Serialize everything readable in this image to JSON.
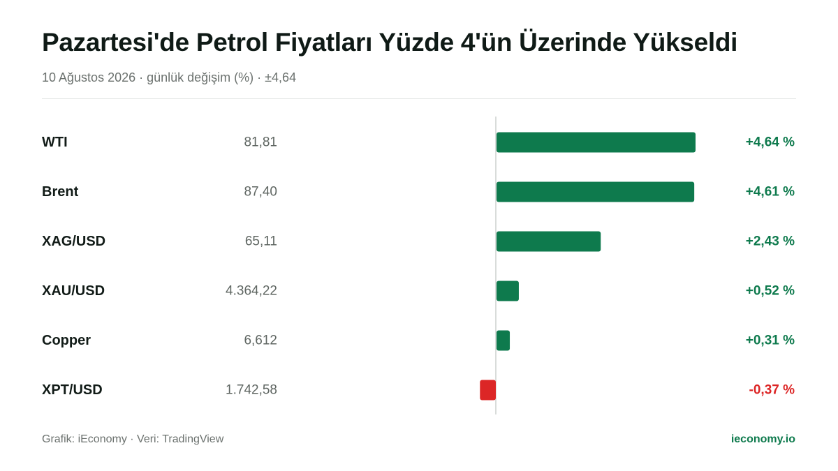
{
  "header": {
    "title": "Pazartesi'de Petrol Fiyatları Yüzde 4'ün Üzerinde Yükseldi",
    "subtitle": "10 Ağustos 2026 · günlük değişim (%) · ±4,64"
  },
  "colors": {
    "positive": "#0e7a4d",
    "negative": "#dc2626",
    "axis": "#d9dcda",
    "label": "#111b17",
    "price": "#5f6662"
  },
  "chart_data": {
    "type": "bar",
    "orientation": "horizontal",
    "categories": [
      "WTI",
      "Brent",
      "XAG/USD",
      "XAU/USD",
      "Copper",
      "XPT/USD"
    ],
    "prices": [
      "81,81",
      "87,40",
      "65,11",
      "4.364,22",
      "6,612",
      "1.742,58"
    ],
    "values": [
      4.64,
      4.61,
      2.43,
      0.52,
      0.31,
      -0.37
    ],
    "value_labels": [
      "+4,64 %",
      "+4,61 %",
      "+2,43 %",
      "+0,52 %",
      "+0,31 %",
      "-0,37 %"
    ],
    "xlim": [
      -4.64,
      4.64
    ],
    "grid": false
  },
  "footer": {
    "credit": "Grafik: iEconomy · Veri: TradingView",
    "site": "ieconomy.io"
  }
}
